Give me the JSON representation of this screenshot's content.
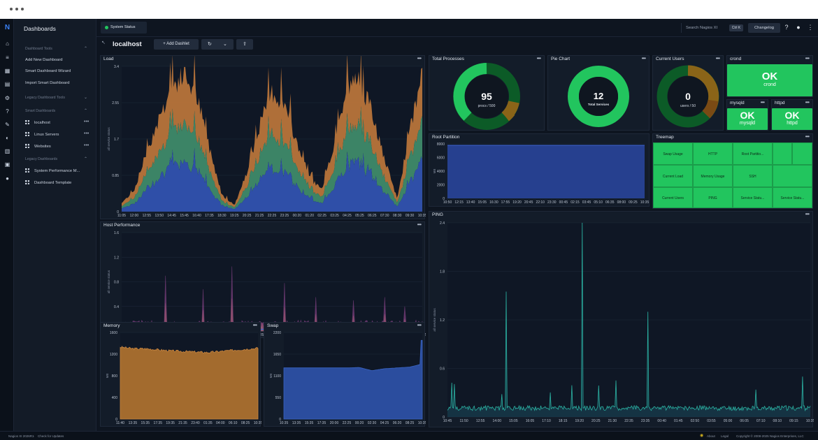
{
  "sidebar": {
    "title": "Dashboards",
    "tools_header": "Dashboard Tools",
    "tools": [
      "Add New Dashboard",
      "Smart Dashboard Wizard",
      "Import Smart Dashboard"
    ],
    "legacy_tools_header": "Legacy Dashboard Tools",
    "smart_header": "Smart Dashboards",
    "smart": [
      "localhost",
      "Linux Servers",
      "Websites"
    ],
    "legacy_header": "Legacy Dashboards",
    "legacy": [
      "System Performance M...",
      "Dashboard Template"
    ]
  },
  "topbar": {
    "status_tab": "System Status",
    "search": "Search Nagios XI",
    "shortcut": "Ctrl K",
    "changelog": "Changelog"
  },
  "toolbar": {
    "host": "localhost",
    "add_dashlet": "+ Add Dashlet"
  },
  "panels": {
    "load": {
      "title": "Load",
      "ylabel": "all service status",
      "yticks": [
        "3.4",
        "2.55",
        "1.7",
        "0.85",
        "0"
      ],
      "xticks": [
        "11:05",
        "12:00",
        "12:55",
        "13:50",
        "14:45",
        "15:45",
        "16:40",
        "17:35",
        "18:30",
        "19:25",
        "20:25",
        "21:25",
        "22:25",
        "23:25",
        "00:20",
        "01:20",
        "02:25",
        "03:25",
        "04:25",
        "05:25",
        "06:25",
        "07:30",
        "08:30",
        "09:30",
        "10:35"
      ]
    },
    "host_perf": {
      "title": "Host Performance",
      "ylabel": "all service status",
      "yticks": [
        "1.6",
        "1.2",
        "0.8",
        "0.4",
        "0"
      ],
      "xticks": [
        "11:05",
        "12:00",
        "12:55",
        "13:50",
        "14:45",
        "15:45",
        "16:40",
        "17:35",
        "18:30",
        "19:25",
        "20:25",
        "21:25",
        "22:25",
        "23:25",
        "00:20",
        "01:20",
        "02:25",
        "03:25",
        "04:25",
        "05:25",
        "06:25",
        "07:30",
        "08:30",
        "09:30",
        "10:35"
      ]
    },
    "memory": {
      "title": "Memory",
      "ylabel": "MB",
      "yticks": [
        "1600",
        "1200",
        "800",
        "400",
        "0"
      ],
      "xticks": [
        "11:40",
        "13:35",
        "15:35",
        "17:35",
        "19:35",
        "21:35",
        "23:40",
        "01:35",
        "04:00",
        "06:10",
        "08:25",
        "10:35"
      ]
    },
    "swap": {
      "title": "Swap",
      "ylabel": "MB",
      "yticks": [
        "2200",
        "1650",
        "1100",
        "550",
        "0"
      ],
      "xticks": [
        "10:35",
        "13:35",
        "15:35",
        "17:35",
        "20:00",
        "22:25",
        "00:20",
        "02:30",
        "04:25",
        "06:20",
        "08:25",
        "10:35"
      ]
    },
    "total_processes": {
      "title": "Total Processes",
      "value": "95",
      "caption": "procs / 500"
    },
    "pie": {
      "title": "Pie Chart",
      "value": "12",
      "caption": "Total Services"
    },
    "current_users": {
      "title": "Current Users",
      "value": "0",
      "caption": "users / 50"
    },
    "crond": {
      "title": "crond",
      "status": "OK",
      "service": "crond"
    },
    "mysqld": {
      "title": "mysqld",
      "status": "OK",
      "service": "mysqld"
    },
    "httpd": {
      "title": "httpd",
      "status": "OK",
      "service": "httpd"
    },
    "root": {
      "title": "Root Partition",
      "ylabel": "MB",
      "yticks": [
        "8000",
        "6000",
        "4000",
        "2000",
        "0"
      ],
      "xticks": [
        "10:50",
        "12:15",
        "13:40",
        "15:05",
        "16:30",
        "17:55",
        "19:20",
        "20:45",
        "22:10",
        "23:30",
        "00:45",
        "02:15",
        "03:45",
        "05:10",
        "06:35",
        "08:00",
        "09:25",
        "10:35"
      ]
    },
    "treemap": {
      "title": "Treemap",
      "cells": [
        "Swap Usage",
        "HTTP",
        "Root Partitio...",
        "Current Load",
        "Memory Usage",
        "SSH",
        "Current Users",
        "PING",
        "Service Statu...",
        "Service Statu..."
      ]
    },
    "ping": {
      "title": "PING",
      "ylabel": "all service status",
      "yticks": [
        "2.4",
        "1.8",
        "1.2",
        "0.6",
        "0"
      ],
      "xticks": [
        "10:45",
        "11:50",
        "12:55",
        "14:00",
        "15:05",
        "16:05",
        "17:10",
        "18:15",
        "19:20",
        "20:25",
        "21:30",
        "22:35",
        "23:35",
        "00:40",
        "01:45",
        "02:50",
        "03:55",
        "05:00",
        "06:05",
        "07:10",
        "08:10",
        "09:15",
        "10:35"
      ]
    }
  },
  "chart_data": [
    {
      "type": "area",
      "title": "Load",
      "series": [
        {
          "name": "",
          "values": [
            0.2,
            0.5,
            1.4,
            2.2,
            2.9,
            3.2,
            2.7,
            1.5,
            0.4,
            0.15,
            0.9,
            2.0,
            2.8,
            2.5,
            1.6,
            0.8,
            0.5,
            1.6,
            2.9,
            3.1,
            2.3,
            1.2,
            0.3,
            1.9,
            3.2
          ]
        }
      ],
      "ylim": [
        0,
        3.4
      ]
    },
    {
      "type": "line",
      "title": "Memory",
      "values": [
        1330,
        1300,
        1300,
        1280,
        1260,
        1250,
        1240,
        1230,
        1250,
        1270,
        1290,
        1310
      ],
      "ylim": [
        0,
        1600
      ]
    },
    {
      "type": "area",
      "title": "Swap",
      "values": [
        1300,
        1300,
        1300,
        1300,
        1300,
        1300,
        1310,
        1230,
        1280,
        1300,
        1320,
        1400
      ],
      "ylim": [
        0,
        2200
      ]
    },
    {
      "type": "area",
      "title": "Root Partition",
      "values": [
        7800,
        7800,
        7800,
        7800,
        7800,
        7800,
        7800,
        7800,
        7800,
        7800
      ],
      "ylim": [
        0,
        8000
      ]
    },
    {
      "type": "line",
      "title": "PING",
      "values": [
        0.1,
        0.15,
        1.55,
        0.1,
        0.2,
        2.4,
        0.1,
        0.2,
        0.1,
        1.3,
        0.1,
        0.15,
        0.1,
        0.1,
        0.1,
        0.1,
        0.12,
        0.1,
        0.5,
        0.1
      ],
      "ylim": [
        0,
        2.4
      ]
    }
  ],
  "footer": {
    "version": "Nagios XI 2026R1",
    "updates": "Check for Updates",
    "about": "About",
    "legal": "Legal",
    "copyright": "Copyright © 2008-2025 Nagios Enterprises, LLC"
  }
}
